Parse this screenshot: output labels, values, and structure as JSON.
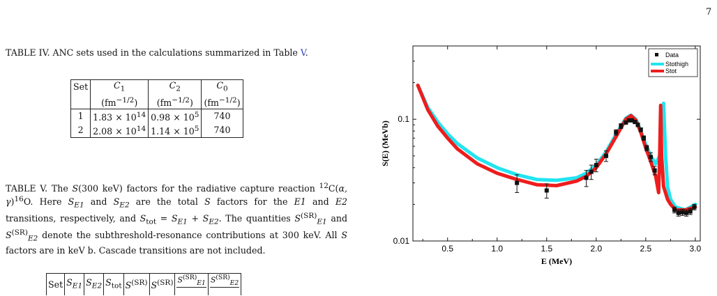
{
  "page_number": "7",
  "table_iv": {
    "caption_label": "TABLE IV.",
    "caption_text": " ANC sets used in the calculations summarized in Table ",
    "caption_ref": "V",
    "caption_end": ".",
    "headers": [
      "Set",
      "C",
      "C",
      "C"
    ],
    "header_subs": [
      "",
      "1",
      "2",
      "0"
    ],
    "units": [
      "",
      "(fm",
      "(fm",
      "(fm"
    ],
    "units_sup": "−1/2",
    "units_close": ")",
    "rows": [
      {
        "set": "1",
        "c1_mant": "1.83 × 10",
        "c1_exp": "14",
        "c2_mant": "0.98 × 10",
        "c2_exp": "5",
        "c0": "740"
      },
      {
        "set": "2",
        "c1_mant": "2.08 × 10",
        "c1_exp": "14",
        "c2_mant": "1.14 × 10",
        "c2_exp": "5",
        "c0": "740"
      }
    ]
  },
  "table_v": {
    "caption_label": "TABLE V.",
    "s1": " The ",
    "s2": "S",
    "s3": "(300 keV) factors for the radiative capture reaction ",
    "s4": "12",
    "s5": "C(",
    "s6": "α, γ",
    "s7": ")",
    "s8": "16",
    "s9": "O. Here ",
    "s10": "S",
    "s11": "E1",
    "s12": " and ",
    "s13": "S",
    "s14": "E2",
    "s15": " are the total ",
    "s16": "S",
    "s17": " factors for the ",
    "s18": "E1",
    "s19": " and ",
    "s20": "E2",
    "s21": " transitions, respectively, and ",
    "s22": "S",
    "s23": "tot",
    "s24": " = ",
    "s25": "S",
    "s26": "E1",
    "s27": " + ",
    "s28": "S",
    "s29": "E2",
    "s30": ". The quantities ",
    "s31": "S",
    "s32": "(SR)",
    "s33": "E1",
    "s34": " and ",
    "s35": "S",
    "s36": "(SR)",
    "s37": "E2",
    "s38": " denote the subthreshold-resonance contributions at 300 keV. All ",
    "s39": "S",
    "s40": " factors are in keV b. Cascade transitions are not included.",
    "col_set": "Set",
    "col_s": "S",
    "sub_e1": "E1",
    "sub_e2": "E2",
    "sub_tot": "tot",
    "sup_sr": "(SR)"
  },
  "chart_data": {
    "type": "line",
    "title": "",
    "xlabel": "E (MeV)",
    "ylabel": "S(E) (MeVb)",
    "xlim": [
      0.15,
      3.05
    ],
    "ylim": [
      0.01,
      0.4
    ],
    "y_scale": "log",
    "x_ticks": [
      "0.5",
      "1.0",
      "1.5",
      "2.0",
      "2.5",
      "3.0"
    ],
    "x_tick_values": [
      0.5,
      1.0,
      1.5,
      2.0,
      2.5,
      3.0
    ],
    "y_ticks": [
      "0.01",
      "0.1"
    ],
    "y_tick_values": [
      0.01,
      0.1
    ],
    "legend_position": "top-right",
    "series": [
      {
        "name": "Stothigh",
        "color": "#22e4f0",
        "x": [
          0.2,
          0.3,
          0.4,
          0.5,
          0.6,
          0.8,
          1.0,
          1.2,
          1.4,
          1.6,
          1.8,
          1.9,
          2.0,
          2.1,
          2.2,
          2.3,
          2.35,
          2.4,
          2.45,
          2.5,
          2.55,
          2.6,
          2.64,
          2.66,
          2.68,
          2.7,
          2.72,
          2.75,
          2.8,
          2.9,
          3.0
        ],
        "y": [
          0.19,
          0.125,
          0.095,
          0.076,
          0.063,
          0.048,
          0.04,
          0.035,
          0.032,
          0.0315,
          0.033,
          0.036,
          0.042,
          0.054,
          0.075,
          0.102,
          0.108,
          0.1,
          0.08,
          0.062,
          0.05,
          0.043,
          0.05,
          0.09,
          0.135,
          0.05,
          0.028,
          0.022,
          0.019,
          0.018,
          0.02
        ]
      },
      {
        "name": "Stot",
        "color": "#ee1d1d",
        "x": [
          0.2,
          0.3,
          0.4,
          0.5,
          0.6,
          0.8,
          1.0,
          1.2,
          1.4,
          1.6,
          1.8,
          1.9,
          2.0,
          2.1,
          2.2,
          2.3,
          2.35,
          2.4,
          2.45,
          2.5,
          2.55,
          2.6,
          2.63,
          2.64,
          2.65,
          2.66,
          2.68,
          2.72,
          2.75,
          2.8,
          2.9,
          3.0
        ],
        "y": [
          0.19,
          0.12,
          0.088,
          0.07,
          0.057,
          0.043,
          0.036,
          0.032,
          0.029,
          0.0285,
          0.031,
          0.034,
          0.04,
          0.052,
          0.072,
          0.1,
          0.107,
          0.098,
          0.078,
          0.058,
          0.045,
          0.034,
          0.025,
          0.05,
          0.13,
          0.05,
          0.028,
          0.022,
          0.02,
          0.018,
          0.018,
          0.019
        ]
      }
    ],
    "data_points": {
      "name": "Data",
      "color": "#111111",
      "x": [
        1.2,
        1.5,
        1.9,
        1.95,
        2.0,
        2.1,
        2.2,
        2.25,
        2.3,
        2.33,
        2.36,
        2.39,
        2.42,
        2.45,
        2.48,
        2.51,
        2.55,
        2.59,
        2.79,
        2.83,
        2.87,
        2.91,
        2.95,
        2.99
      ],
      "y": [
        0.03,
        0.026,
        0.033,
        0.037,
        0.042,
        0.05,
        0.078,
        0.088,
        0.094,
        0.098,
        0.098,
        0.095,
        0.09,
        0.082,
        0.07,
        0.058,
        0.049,
        0.038,
        0.018,
        0.017,
        0.0172,
        0.017,
        0.0175,
        0.019
      ],
      "err": [
        0.005,
        0.0035,
        0.005,
        0.005,
        0.005,
        0.005,
        0.004,
        0.004,
        0.003,
        0.003,
        0.003,
        0.003,
        0.003,
        0.003,
        0.003,
        0.003,
        0.004,
        0.003,
        0.001,
        0.001,
        0.001,
        0.001,
        0.001,
        0.001
      ]
    }
  }
}
